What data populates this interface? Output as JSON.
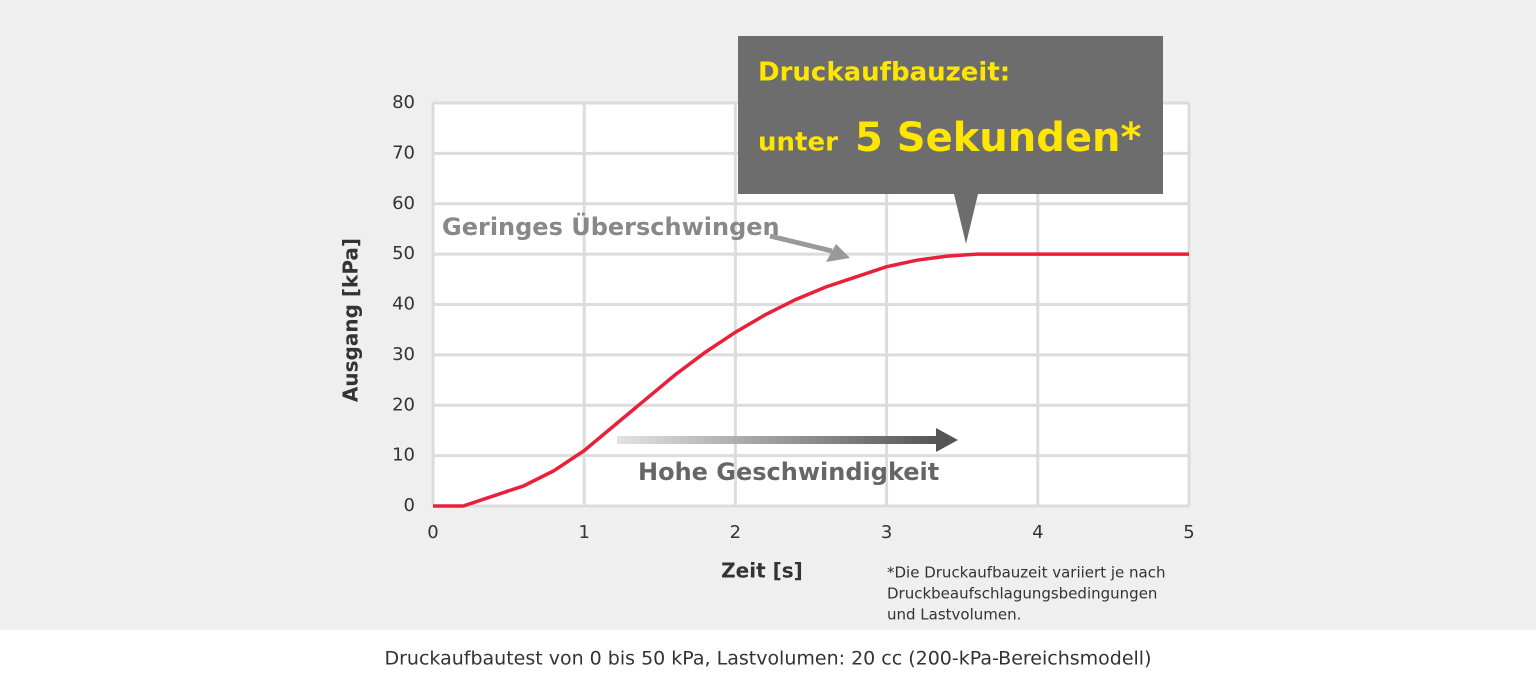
{
  "chart_data": {
    "type": "line",
    "x": [
      0,
      0.2,
      0.4,
      0.6,
      0.8,
      1.0,
      1.2,
      1.4,
      1.6,
      1.8,
      2.0,
      2.2,
      2.4,
      2.6,
      2.8,
      3.0,
      3.2,
      3.4,
      3.6,
      4.0,
      4.6,
      5.0
    ],
    "values": [
      0,
      0,
      2,
      4,
      7,
      11,
      16,
      21,
      26,
      30.5,
      34.5,
      38,
      41,
      43.5,
      45.5,
      47.5,
      48.8,
      49.6,
      50,
      50,
      50,
      50
    ],
    "color": "#e8203a",
    "xlim": [
      0,
      5
    ],
    "xticks": [
      0,
      1,
      2,
      3,
      4,
      5
    ],
    "ylim": [
      0,
      80
    ],
    "yticks": [
      0,
      10,
      20,
      30,
      40,
      50,
      60,
      70,
      80
    ],
    "grid": true,
    "x_label": "Zeit [s]",
    "y_label": "Ausgang [kPa]",
    "callout_title": "Druckaufbauzeit:",
    "callout_prefix": "unter",
    "callout_highlight": "5 Sekunden*",
    "overshoot_note": "Geringes Überschwingen",
    "speed_note": "Hohe Geschwindigkeit",
    "footnote": [
      "*Die Druckaufbauzeit variiert je nach",
      "Druckbeaufschlagungsbedingungen",
      "und Lastvolumen."
    ]
  },
  "caption": "Druckaufbautest von 0 bis 50 kPa, Lastvolumen: 20 cc (200-kPa-Bereichsmodell)"
}
